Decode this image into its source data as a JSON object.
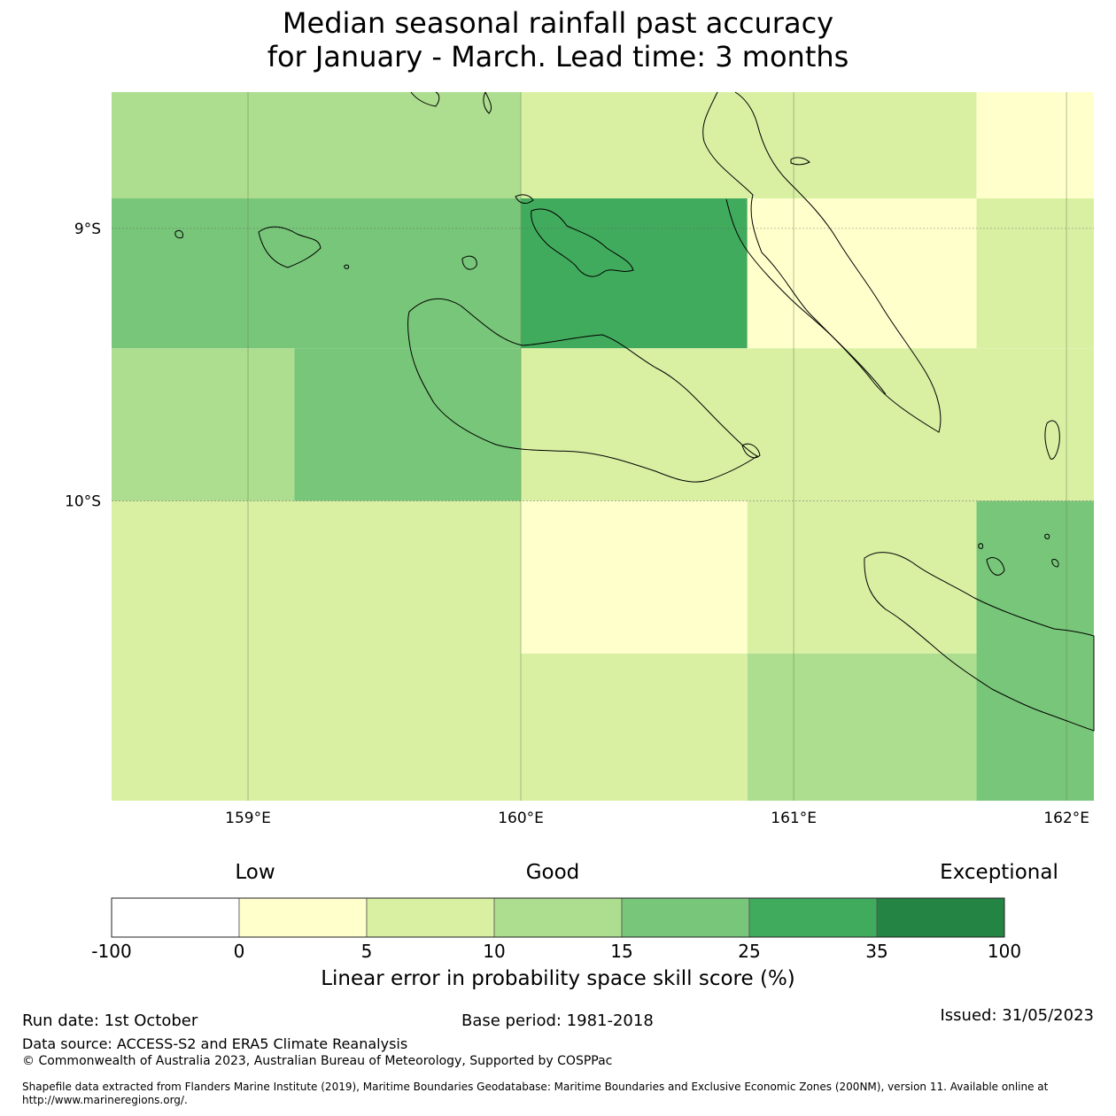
{
  "title": {
    "line1": "Median seasonal rainfall past accuracy",
    "line2": "for January - March. Lead time: 3 months"
  },
  "map": {
    "lon_range": [
      158.5,
      162.1
    ],
    "lat_range": [
      -8.5,
      -11.1
    ],
    "lat_ticks": [
      {
        "value": -9,
        "label": "9°S"
      },
      {
        "value": -10,
        "label": "10°S"
      }
    ],
    "lon_ticks": [
      {
        "value": 159,
        "label": "159°E"
      },
      {
        "value": 160,
        "label": "160°E"
      },
      {
        "value": 161,
        "label": "161°E"
      },
      {
        "value": 162,
        "label": "162°E"
      }
    ],
    "cells": [
      {
        "lon": [
          158.5,
          160.0
        ],
        "lat": [
          -8.5,
          -8.89
        ],
        "cat": 3
      },
      {
        "lon": [
          160.0,
          161.67
        ],
        "lat": [
          -8.5,
          -8.89
        ],
        "cat": 2
      },
      {
        "lon": [
          161.67,
          162.1
        ],
        "lat": [
          -8.5,
          -8.89
        ],
        "cat": 1
      },
      {
        "lon": [
          158.5,
          160.0
        ],
        "lat": [
          -8.89,
          -9.44
        ],
        "cat": 4
      },
      {
        "lon": [
          160.0,
          160.83
        ],
        "lat": [
          -8.89,
          -9.44
        ],
        "cat": 5
      },
      {
        "lon": [
          160.83,
          161.67
        ],
        "lat": [
          -8.89,
          -9.44
        ],
        "cat": 1
      },
      {
        "lon": [
          161.67,
          162.1
        ],
        "lat": [
          -8.89,
          -9.44
        ],
        "cat": 2
      },
      {
        "lon": [
          158.5,
          159.17
        ],
        "lat": [
          -9.44,
          -10.0
        ],
        "cat": 3
      },
      {
        "lon": [
          159.17,
          160.0
        ],
        "lat": [
          -9.44,
          -10.0
        ],
        "cat": 4
      },
      {
        "lon": [
          160.0,
          162.1
        ],
        "lat": [
          -9.44,
          -10.0
        ],
        "cat": 2
      },
      {
        "lon": [
          158.5,
          160.0
        ],
        "lat": [
          -10.0,
          -11.1
        ],
        "cat": 2
      },
      {
        "lon": [
          160.0,
          160.83
        ],
        "lat": [
          -10.0,
          -10.56
        ],
        "cat": 1
      },
      {
        "lon": [
          160.0,
          160.83
        ],
        "lat": [
          -10.56,
          -11.1
        ],
        "cat": 2
      },
      {
        "lon": [
          160.83,
          161.67
        ],
        "lat": [
          -10.0,
          -10.56
        ],
        "cat": 2
      },
      {
        "lon": [
          160.83,
          161.67
        ],
        "lat": [
          -10.56,
          -11.1
        ],
        "cat": 3
      },
      {
        "lon": [
          161.67,
          162.1
        ],
        "lat": [
          -10.0,
          -11.1
        ],
        "cat": 4
      }
    ]
  },
  "colorbar": {
    "words": {
      "low": "Low",
      "good": "Good",
      "exceptional": "Exceptional"
    },
    "bins": [
      {
        "from": -100,
        "to": 0,
        "color": "#ffffff"
      },
      {
        "from": 0,
        "to": 5,
        "color": "#ffffcc"
      },
      {
        "from": 5,
        "to": 10,
        "color": "#d9f0a3"
      },
      {
        "from": 10,
        "to": 15,
        "color": "#addd8e"
      },
      {
        "from": 15,
        "to": 25,
        "color": "#78c679"
      },
      {
        "from": 25,
        "to": 35,
        "color": "#41ab5d"
      },
      {
        "from": 35,
        "to": 100,
        "color": "#238443"
      }
    ],
    "tick_labels": [
      "-100",
      "0",
      "5",
      "10",
      "15",
      "25",
      "35",
      "100"
    ],
    "label": "Linear error in probability space skill score (%)"
  },
  "footer": {
    "run_date": "Run date: 1st October",
    "base_period": "Base period: 1981-2018",
    "issued": "Issued: 31/05/2023",
    "data_source": "Data source: ACCESS-S2 and ERA5 Climate Reanalysis",
    "copyright": "© Commonwealth of Australia 2023, Australian Bureau of Meteorology, Supported by COSPPac",
    "shapefile_line1": "Shapefile data extracted from Flanders Marine Institute (2019), Maritime Boundaries Geodatabase: Maritime Boundaries and Exclusive Economic Zones (200NM), version 11. Available online at",
    "shapefile_line2": "http://www.marineregions.org/."
  }
}
